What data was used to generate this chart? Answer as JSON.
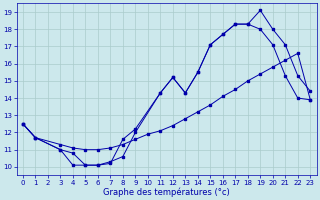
{
  "title": "Graphe des températures (°c)",
  "bg_color": "#cce8ec",
  "grid_color": "#aacccc",
  "line_color": "#0000aa",
  "xlim": [
    -0.5,
    23.5
  ],
  "ylim": [
    9.5,
    19.5
  ],
  "xticks": [
    0,
    1,
    2,
    3,
    4,
    5,
    6,
    7,
    8,
    9,
    10,
    11,
    12,
    13,
    14,
    15,
    16,
    17,
    18,
    19,
    20,
    21,
    22,
    23
  ],
  "yticks": [
    10,
    11,
    12,
    13,
    14,
    15,
    16,
    17,
    18,
    19
  ],
  "line1_x": [
    0,
    1,
    3,
    4,
    5,
    6,
    7,
    8,
    9,
    11,
    12,
    13,
    14,
    15,
    16,
    17,
    18,
    19,
    20,
    21,
    22,
    23
  ],
  "line1_y": [
    12.5,
    11.7,
    11.0,
    10.8,
    10.1,
    10.1,
    10.2,
    11.6,
    12.2,
    14.3,
    15.2,
    14.3,
    15.5,
    17.1,
    17.7,
    18.3,
    18.3,
    19.1,
    18.0,
    17.1,
    15.3,
    14.4
  ],
  "line2_x": [
    0,
    1,
    3,
    4,
    5,
    6,
    7,
    8,
    9,
    10,
    11,
    12,
    13,
    14,
    15,
    16,
    17,
    18,
    19,
    20,
    21,
    22,
    23
  ],
  "line2_y": [
    12.5,
    11.7,
    11.3,
    11.1,
    11.0,
    11.0,
    11.1,
    11.3,
    11.6,
    11.9,
    12.1,
    12.4,
    12.8,
    13.2,
    13.6,
    14.1,
    14.5,
    15.0,
    15.4,
    15.8,
    16.2,
    16.6,
    13.9
  ],
  "line3_x": [
    0,
    1,
    3,
    4,
    5,
    6,
    7,
    8,
    9,
    11,
    12,
    13,
    14,
    15,
    16,
    17,
    18,
    19,
    20,
    21,
    22,
    23
  ],
  "line3_y": [
    12.5,
    11.7,
    11.0,
    10.1,
    10.1,
    10.1,
    10.3,
    10.6,
    12.0,
    14.3,
    15.2,
    14.3,
    15.5,
    17.1,
    17.7,
    18.3,
    18.3,
    18.0,
    17.1,
    15.3,
    14.0,
    13.9
  ]
}
